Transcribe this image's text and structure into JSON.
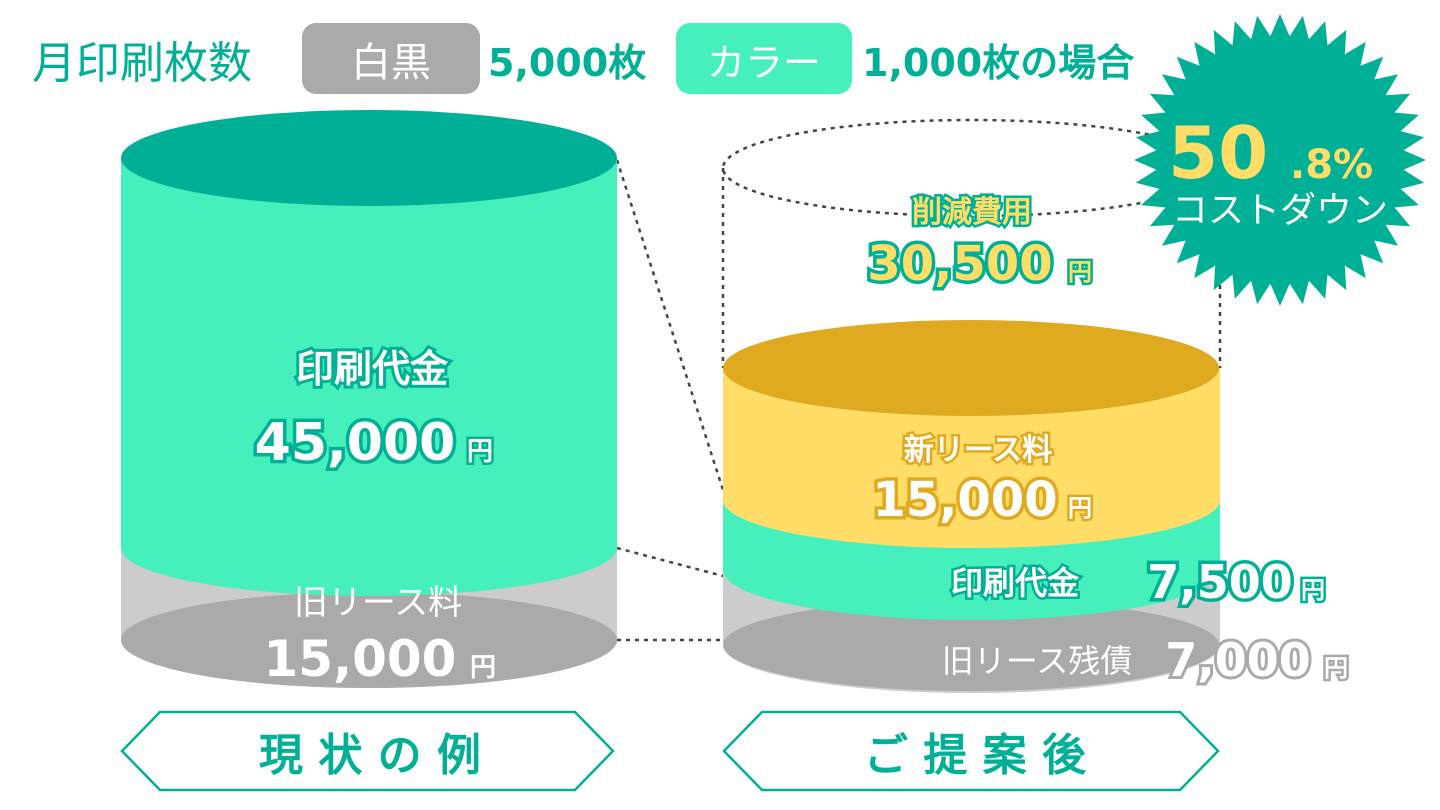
{
  "header": {
    "title": "月印刷枚数",
    "mono_label": "白黒",
    "mono_count": "5,000枚",
    "color_label": "カラー",
    "color_count": "1,000枚の場合"
  },
  "badge": {
    "percent_big": "50",
    "percent_small": ".8%",
    "text": "コストダウン"
  },
  "current": {
    "print_label": "印刷代金",
    "print_value": "45,000",
    "lease_label": "旧リース料",
    "lease_value": "15,000",
    "yen": "円",
    "caption": "現 状 の 例"
  },
  "proposal": {
    "saved_label": "削減費用",
    "saved_value": "30,500",
    "new_lease_label": "新リース料",
    "new_lease_value": "15,000",
    "print_label": "印刷代金",
    "print_value": "7,500",
    "old_lease_label": "旧リース残債",
    "old_lease_value": "7,000",
    "yen": "円",
    "caption": "ご 提 案 後"
  },
  "colors": {
    "teal": "#00b096",
    "mint": "#45f0bc",
    "gray": "#aaaaaa",
    "light_gray": "#cccccc",
    "gold": "#e0aa20",
    "yellow": "#ffdd66"
  }
}
